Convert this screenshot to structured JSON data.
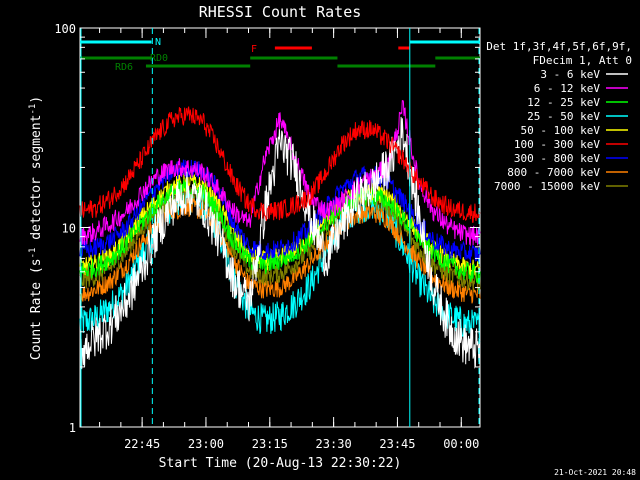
{
  "chart_data": {
    "type": "line",
    "title": "RHESSI Count Rates",
    "xlabel": "Start Time (20-Aug-13 22:30:22)",
    "ylabel_main": "Count Rate (s",
    "ylabel_sup": "-1",
    "ylabel_mid": " detector segment",
    "ylabel_sup2": "-1",
    "ylabel_end": ")",
    "y_scale": "log",
    "ylim": [
      1,
      100
    ],
    "y_ticks": [
      {
        "value": 1,
        "label": "1"
      },
      {
        "value": 10,
        "label": "10"
      },
      {
        "value": 100,
        "label": "100"
      }
    ],
    "xlim_minutes": [
      0,
      94
    ],
    "x_ticks": [
      {
        "minute": 14.6,
        "label": "22:45"
      },
      {
        "minute": 29.6,
        "label": "23:00"
      },
      {
        "minute": 44.6,
        "label": "23:15"
      },
      {
        "minute": 59.6,
        "label": "23:30"
      },
      {
        "minute": 74.6,
        "label": "23:45"
      },
      {
        "minute": 89.6,
        "label": "00:00"
      }
    ],
    "timestamp": "21-Oct-2021 20:48",
    "legend_header": [
      "Det 1f,3f,4f,5f,6f,9f,",
      "FDecim 1, Att 0"
    ],
    "series": [
      {
        "name": "3 - 6 keV",
        "color": "#ffffff",
        "values": [
          2.4,
          2.8,
          3.3,
          4.2,
          6.2,
          9.5,
          13,
          15,
          13,
          9,
          5.5,
          4.2,
          12,
          27,
          20,
          11,
          7,
          10,
          14,
          16,
          20,
          30,
          12,
          5,
          3.2,
          2.6,
          2.4
        ]
      },
      {
        "name": "6 - 12 keV",
        "color": "#ff00ff",
        "values": [
          9,
          9.5,
          10.5,
          12,
          15,
          18,
          20,
          20,
          19,
          15.5,
          12,
          10.5,
          22,
          35,
          22,
          14,
          12,
          13.5,
          16,
          18,
          20,
          40,
          17,
          12,
          10,
          9.2,
          9
        ]
      },
      {
        "name": "12 - 25 keV",
        "color": "#00ff00",
        "values": [
          6,
          6.3,
          7,
          8.3,
          10.5,
          13,
          15,
          16,
          15,
          12,
          8.5,
          6.8,
          6.5,
          6.8,
          7.5,
          8.7,
          10.5,
          12.5,
          14,
          14.5,
          13.5,
          11,
          9,
          7.5,
          6.5,
          6,
          5.8
        ]
      },
      {
        "name": "25 - 50 keV",
        "color": "#00ffff",
        "values": [
          3.3,
          3.5,
          4,
          5,
          7.2,
          10.5,
          13,
          14,
          13,
          9.5,
          5.5,
          3.8,
          3.4,
          3.6,
          4.2,
          5.2,
          7.5,
          10.5,
          12.5,
          13,
          11.5,
          8,
          5.5,
          4.2,
          3.6,
          3.3,
          3.2
        ]
      },
      {
        "name": "50 - 100 keV",
        "color": "#ffff00",
        "values": [
          6.3,
          6.6,
          7.3,
          8.8,
          11.2,
          13.8,
          16,
          17,
          16,
          13,
          9.2,
          7.2,
          6.8,
          7.1,
          7.8,
          9,
          11,
          13.2,
          14.8,
          15.3,
          14.3,
          11.7,
          9.4,
          7.7,
          6.8,
          6.3,
          6.1
        ]
      },
      {
        "name": "100 - 300 keV",
        "color": "#ff0000",
        "values": [
          12,
          12.5,
          14,
          17,
          22,
          29,
          35,
          37,
          34,
          25,
          17,
          13,
          12,
          12.2,
          13,
          14.5,
          19,
          26,
          31,
          31,
          27,
          22,
          17,
          14,
          12.5,
          12,
          11.8
        ]
      },
      {
        "name": "300 - 800 keV",
        "color": "#0000ff",
        "values": [
          7.6,
          7.9,
          8.6,
          10,
          12.8,
          16.2,
          19,
          20,
          19,
          15.5,
          10.4,
          8,
          7.6,
          7.8,
          8.6,
          10,
          12.6,
          15.5,
          17.8,
          18.5,
          17,
          13.5,
          10.5,
          8.6,
          7.8,
          7.5,
          7.3
        ]
      },
      {
        "name": "800 - 7000 keV",
        "color": "#ff8000",
        "values": [
          4.6,
          4.9,
          5.4,
          6.5,
          8.4,
          10.5,
          12,
          12.8,
          12,
          9.8,
          6.8,
          5.2,
          4.9,
          5,
          5.6,
          6.7,
          8.4,
          10.3,
          11.6,
          12,
          11,
          8.6,
          6.8,
          5.6,
          5,
          4.7,
          4.6
        ]
      },
      {
        "name": "7000 - 15000 keV",
        "color": "#808000",
        "values": [
          5.4,
          5.7,
          6.3,
          7.6,
          9.8,
          12.2,
          14,
          14.8,
          14,
          11.4,
          7.9,
          6.1,
          5.7,
          5.9,
          6.6,
          7.8,
          9.8,
          12,
          13.5,
          14,
          12.8,
          10,
          7.9,
          6.5,
          5.8,
          5.5,
          5.3
        ]
      }
    ],
    "annotations": [
      {
        "text": "N",
        "color": "#00ffff"
      },
      {
        "text": "RD0",
        "color": "#008000"
      },
      {
        "text": "RD6",
        "color": "#008000"
      },
      {
        "text": "F",
        "color": "#ff0000"
      }
    ],
    "state_bars": {
      "night_cyan_minutes": [
        [
          0,
          16.8
        ],
        [
          77.5,
          94
        ]
      ],
      "decimation_green_upper_minutes": [
        [
          0,
          16.8
        ],
        [
          40,
          60.5
        ],
        [
          83.5,
          94
        ]
      ],
      "decimation_green_lower_minutes": [
        [
          15.5,
          40
        ],
        [
          60.5,
          83.5
        ]
      ],
      "flare_red_minutes": [
        [
          45.8,
          54.5
        ],
        [
          74.8,
          77.5
        ]
      ]
    },
    "vertical_markers_minutes": {
      "solid_cyan": [
        0,
        77.5
      ],
      "dashed_cyan": [
        17,
        94
      ]
    }
  }
}
